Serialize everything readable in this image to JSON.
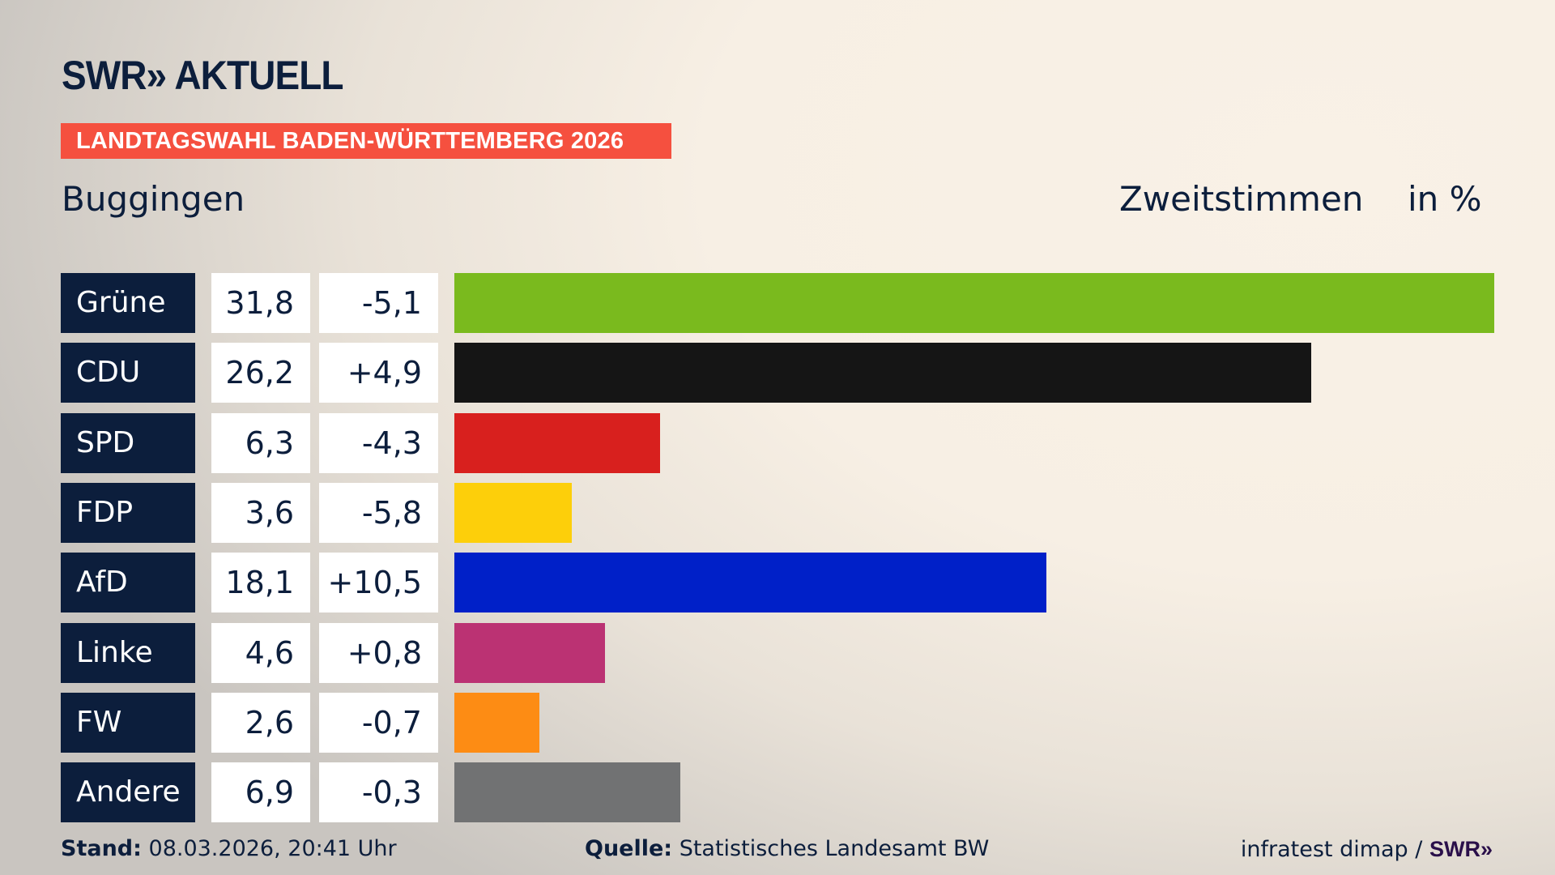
{
  "header": {
    "logo": "SWR» AKTUELL",
    "banner": "LANDTAGSWAHL BADEN-WÜRTTEMBERG 2026",
    "place": "Buggingen",
    "vote_type": "Zweitstimmen",
    "unit": "in %"
  },
  "chart_data": {
    "type": "bar",
    "orientation": "horizontal",
    "categories": [
      "Grüne",
      "CDU",
      "SPD",
      "FDP",
      "AfD",
      "Linke",
      "FW",
      "Andere"
    ],
    "values": [
      31.8,
      26.2,
      6.3,
      3.6,
      18.1,
      4.6,
      2.6,
      6.9
    ],
    "value_labels": [
      "31,8",
      "26,2",
      "6,3",
      "3,6",
      "18,1",
      "4,6",
      "2,6",
      "6,9"
    ],
    "change_labels": [
      "-5,1",
      "+4,9",
      "-4,3",
      "-5,8",
      "+10,5",
      "+0,8",
      "-0,7",
      "-0,3"
    ],
    "changes": [
      -5.1,
      4.9,
      -4.3,
      -5.8,
      10.5,
      0.8,
      -0.7,
      -0.3
    ],
    "colors": [
      "#7aba1e",
      "#151515",
      "#d8201e",
      "#fdcf0a",
      "#0020c8",
      "#bb3273",
      "#fd8c14",
      "#717273"
    ],
    "xlabel": "",
    "ylabel": "Zweitstimmen in %"
  },
  "footer": {
    "stand_label": "Stand:",
    "stand_value": "08.03.2026, 20:41 Uhr",
    "source_label": "Quelle:",
    "source_value": "Statistisches Landesamt BW",
    "credit": "infratest dimap /",
    "credit_logo": "SWR»"
  }
}
